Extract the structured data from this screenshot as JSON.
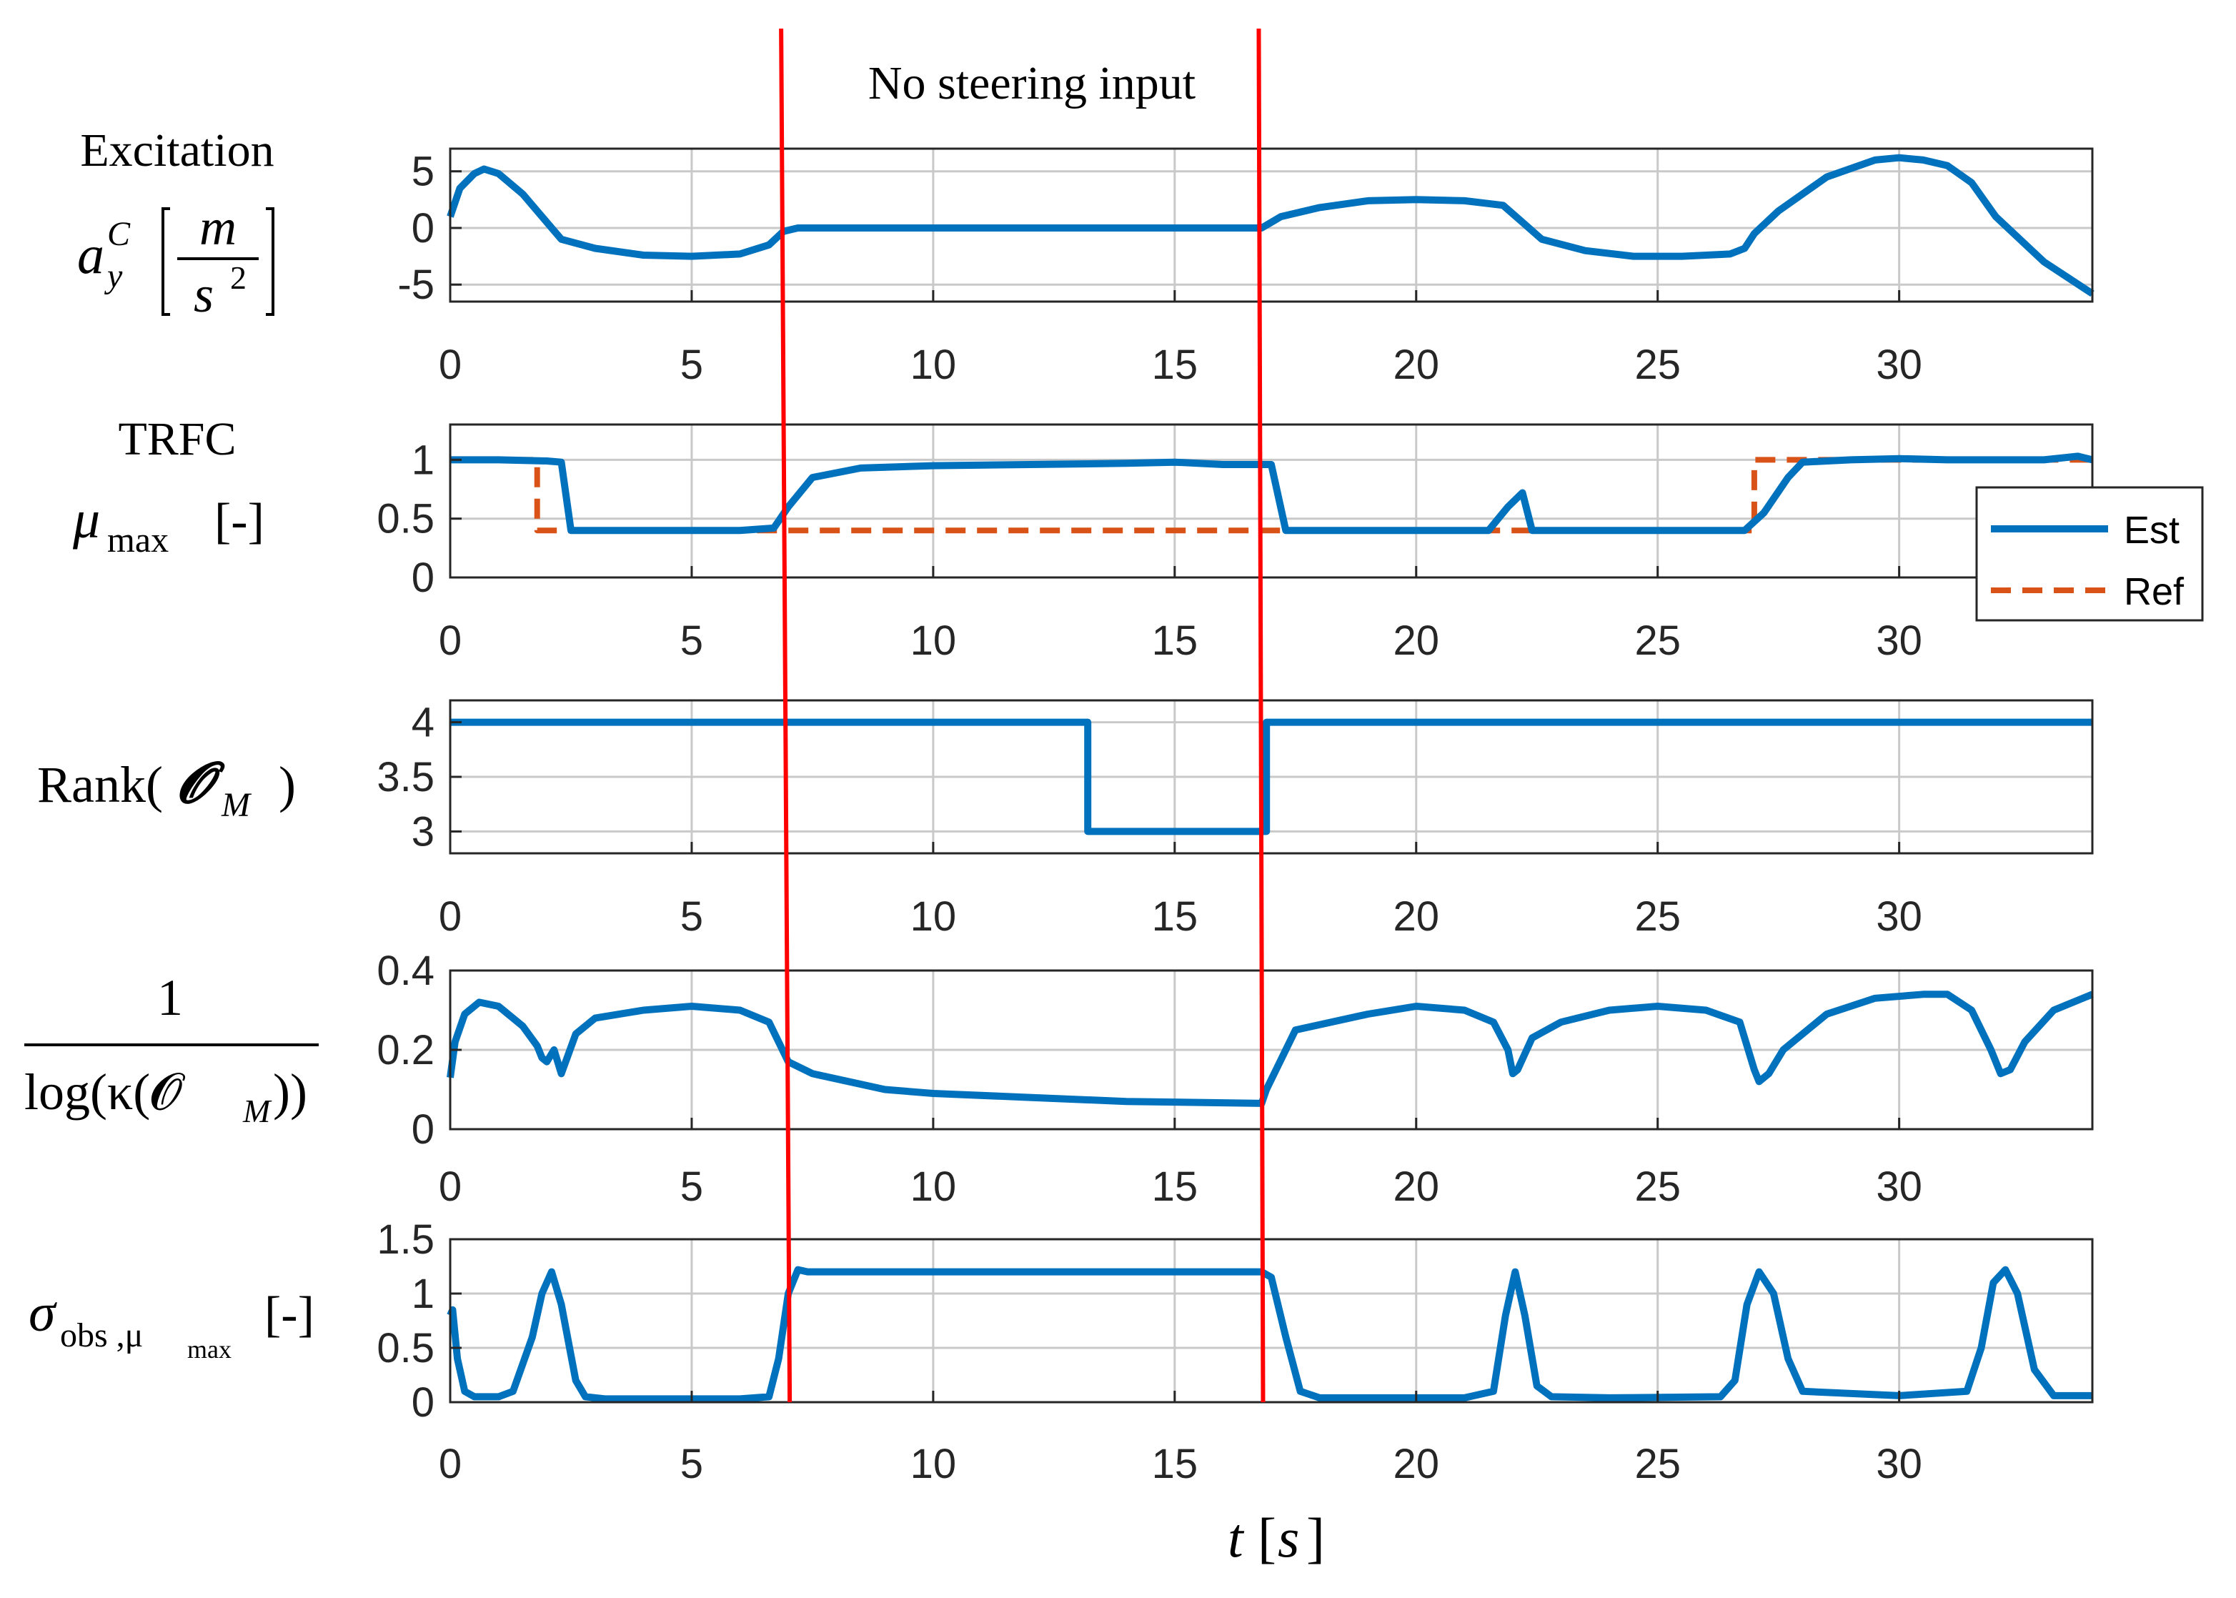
{
  "chart_data": {
    "type": "line",
    "annotation": "No steering input",
    "xlabel": "t",
    "xunit": "s",
    "xlim": [
      0,
      34
    ],
    "xticks": [
      0,
      5,
      10,
      15,
      20,
      25,
      30
    ],
    "vlines": [
      7.0,
      16.8
    ],
    "colors": {
      "est": "#0072BD",
      "ref": "#D95319",
      "marker": "#FF0000"
    },
    "legend": {
      "entries": [
        "Est",
        "Ref"
      ],
      "position": "right of panel 2"
    },
    "panels": [
      {
        "id": "excitation",
        "title": "Excitation",
        "ylabel_symbol": "a",
        "ylabel_sup": "C",
        "ylabel_sub": "y",
        "unit_num": "m",
        "unit_den": "s",
        "unit_den_exp": "2",
        "ylim": [
          -6.5,
          7
        ],
        "yticks": [
          -5,
          0,
          5
        ],
        "ytick_labels": [
          "-5",
          "0",
          "5"
        ],
        "series": [
          {
            "name": "Est",
            "style": "est",
            "x": [
              0,
              0.2,
              0.5,
              0.7,
              1.0,
              1.5,
              2.0,
              2.3,
              3.0,
              4.0,
              5.0,
              6.0,
              6.6,
              6.9,
              7.2,
              8,
              10,
              12,
              14,
              16.8,
              17.2,
              18,
              19,
              20,
              21,
              21.8,
              22.2,
              22.6,
              23.5,
              24.5,
              25.5,
              26.5,
              26.8,
              27.0,
              27.5,
              28.5,
              29.5,
              30.0,
              30.5,
              31,
              31.5,
              32,
              33,
              34
            ],
            "y": [
              1.0,
              3.5,
              4.8,
              5.2,
              4.8,
              3.0,
              0.5,
              -1.0,
              -1.8,
              -2.4,
              -2.5,
              -2.3,
              -1.5,
              -0.3,
              0,
              0,
              0,
              0,
              0,
              0,
              1.0,
              1.8,
              2.4,
              2.5,
              2.4,
              2.0,
              0.5,
              -1.0,
              -2.0,
              -2.5,
              -2.5,
              -2.3,
              -1.8,
              -0.5,
              1.5,
              4.5,
              6.0,
              6.2,
              6.0,
              5.5,
              4.0,
              1.0,
              -3.0,
              -5.8
            ]
          }
        ]
      },
      {
        "id": "trfc",
        "title": "TRFC",
        "ylabel_symbol": "μ",
        "ylabel_sub": "max",
        "ylabel_unit": "[-]",
        "ylim": [
          0,
          1.3
        ],
        "yticks": [
          0,
          0.5,
          1
        ],
        "ytick_labels": [
          "0",
          "0.5",
          "1"
        ],
        "series": [
          {
            "name": "Est",
            "style": "est",
            "x": [
              0,
              1.0,
              2.0,
              2.3,
              2.5,
              4,
              5,
              6,
              6.7,
              7.0,
              7.5,
              8.5,
              10,
              12,
              14,
              15,
              16,
              17.0,
              17.3,
              18,
              20,
              21.5,
              21.9,
              22.2,
              22.4,
              23,
              25,
              26.8,
              27.2,
              27.7,
              28.0,
              29,
              30,
              31,
              32,
              33,
              33.7,
              34
            ],
            "y": [
              1.0,
              1.0,
              0.99,
              0.98,
              0.4,
              0.4,
              0.4,
              0.4,
              0.42,
              0.6,
              0.85,
              0.93,
              0.95,
              0.96,
              0.97,
              0.98,
              0.96,
              0.96,
              0.4,
              0.4,
              0.4,
              0.4,
              0.6,
              0.72,
              0.4,
              0.4,
              0.4,
              0.4,
              0.55,
              0.85,
              0.98,
              1.0,
              1.01,
              1.0,
              1.0,
              1.0,
              1.03,
              1.0
            ]
          },
          {
            "name": "Ref",
            "style": "ref",
            "x": [
              0,
              1.8,
              1.8,
              27.0,
              27.0,
              34
            ],
            "y": [
              1.0,
              1.0,
              0.4,
              0.4,
              1.0,
              1.0
            ]
          }
        ]
      },
      {
        "id": "rank",
        "ylabel_text": "Rank(",
        "ylabel_symbol": "𝓞",
        "ylabel_sub": "M",
        "ylabel_close": ")",
        "ylim": [
          2.8,
          4.2
        ],
        "yticks": [
          3,
          3.5,
          4
        ],
        "ytick_labels": [
          "3",
          "3.5",
          "4"
        ],
        "series": [
          {
            "name": "Est",
            "style": "est",
            "x": [
              0,
              13.2,
              13.2,
              16.9,
              16.9,
              34
            ],
            "y": [
              4,
              4,
              3,
              3,
              4,
              4
            ]
          }
        ]
      },
      {
        "id": "inv-log-cond",
        "ylabel_num": "1",
        "ylabel_den": "log(κ(𝓞",
        "ylabel_sub": "M",
        "ylabel_den_close": "))",
        "ylim": [
          0,
          0.4
        ],
        "yticks": [
          0,
          0.2,
          0.4
        ],
        "ytick_labels": [
          "0",
          "0.2",
          "0.4"
        ],
        "series": [
          {
            "name": "Est",
            "style": "est",
            "x": [
              0,
              0.1,
              0.3,
              0.6,
              1.0,
              1.5,
              1.8,
              1.9,
              2.0,
              2.15,
              2.3,
              2.6,
              3.0,
              4.0,
              5.0,
              6.0,
              6.6,
              7.0,
              7.5,
              9,
              10,
              12,
              14,
              16.8,
              16.9,
              17.5,
              19,
              20,
              21,
              21.6,
              21.9,
              22.0,
              22.1,
              22.4,
              23,
              24,
              25,
              26,
              26.7,
              27.0,
              27.1,
              27.3,
              27.6,
              28.5,
              29.5,
              30.5,
              31,
              31.5,
              31.9,
              32.1,
              32.3,
              32.6,
              33.2,
              34
            ],
            "y": [
              0.13,
              0.22,
              0.29,
              0.32,
              0.31,
              0.26,
              0.21,
              0.18,
              0.17,
              0.2,
              0.14,
              0.24,
              0.28,
              0.3,
              0.31,
              0.3,
              0.27,
              0.17,
              0.14,
              0.1,
              0.09,
              0.08,
              0.07,
              0.065,
              0.1,
              0.25,
              0.29,
              0.31,
              0.3,
              0.27,
              0.2,
              0.14,
              0.15,
              0.23,
              0.27,
              0.3,
              0.31,
              0.3,
              0.27,
              0.15,
              0.12,
              0.14,
              0.2,
              0.29,
              0.33,
              0.34,
              0.34,
              0.3,
              0.2,
              0.14,
              0.15,
              0.22,
              0.3,
              0.34
            ]
          }
        ]
      },
      {
        "id": "sigma-obs",
        "ylabel_symbol": "σ",
        "ylabel_sub": "obs ,μ",
        "ylabel_subsub": "max",
        "ylabel_unit": "[-]",
        "ylim": [
          0,
          1.5
        ],
        "yticks": [
          0,
          0.5,
          1,
          1.5
        ],
        "ytick_labels": [
          "0",
          "0.5",
          "1",
          "1.5"
        ],
        "series": [
          {
            "name": "Est",
            "style": "est",
            "x": [
              0,
              0.05,
              0.15,
              0.3,
              0.5,
              1.0,
              1.3,
              1.7,
              1.9,
              2.1,
              2.3,
              2.6,
              2.8,
              3.2,
              4,
              5,
              6,
              6.6,
              6.8,
              7.0,
              7.2,
              7.4,
              8,
              10,
              12,
              14,
              16.8,
              17.0,
              17.3,
              17.6,
              18,
              20,
              21,
              21.6,
              21.85,
              22.05,
              22.25,
              22.5,
              22.8,
              24,
              26.3,
              26.6,
              26.85,
              27.1,
              27.4,
              27.7,
              28,
              30,
              31.4,
              31.7,
              31.95,
              32.2,
              32.45,
              32.8,
              33.2,
              34
            ],
            "y": [
              0.8,
              0.85,
              0.4,
              0.1,
              0.05,
              0.05,
              0.1,
              0.6,
              1.0,
              1.2,
              0.9,
              0.2,
              0.05,
              0.03,
              0.03,
              0.03,
              0.03,
              0.05,
              0.4,
              1.0,
              1.22,
              1.2,
              1.2,
              1.2,
              1.2,
              1.2,
              1.2,
              1.15,
              0.6,
              0.1,
              0.04,
              0.04,
              0.04,
              0.1,
              0.8,
              1.2,
              0.8,
              0.15,
              0.05,
              0.04,
              0.05,
              0.2,
              0.9,
              1.2,
              1.0,
              0.4,
              0.1,
              0.06,
              0.1,
              0.5,
              1.1,
              1.22,
              1.0,
              0.3,
              0.06,
              0.06
            ]
          }
        ]
      }
    ]
  }
}
